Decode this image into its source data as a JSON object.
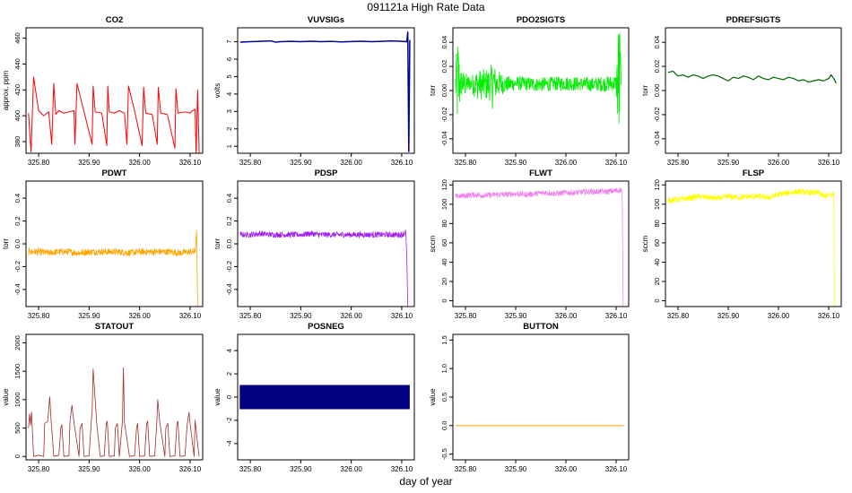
{
  "page": {
    "title": "091121a   High Rate Data",
    "xlabel": "day of year"
  },
  "chart_data": [
    {
      "id": "co2",
      "type": "line",
      "title": "CO2",
      "ylabel": "approx. ppm",
      "color": "#ff0000",
      "xlim": [
        325.775,
        326.125
      ],
      "ylim": [
        371,
        468
      ],
      "xticks": [
        325.8,
        325.9,
        326.0,
        326.1
      ],
      "xtick_labels": [
        "325.80",
        "325.90",
        "326.00",
        "326.10"
      ],
      "yticks": [
        380,
        400,
        420,
        440,
        460
      ],
      "ytick_labels": [
        "380",
        "400",
        "420",
        "440",
        "460"
      ],
      "x": [
        325.78,
        325.785,
        325.79,
        325.8,
        325.81,
        325.82,
        325.826,
        325.83,
        325.834,
        325.84,
        325.85,
        325.86,
        325.87,
        325.872,
        325.876,
        325.89,
        325.906,
        325.908,
        325.912,
        325.925,
        325.935,
        325.937,
        325.94,
        325.95,
        325.96,
        325.97,
        325.975,
        325.978,
        325.99,
        326.005,
        326.008,
        326.012,
        326.025,
        326.035,
        326.037,
        326.042,
        326.055,
        326.07,
        326.072,
        326.076,
        326.09,
        326.1,
        326.105,
        326.11,
        326.112,
        326.115,
        326.118
      ],
      "y": [
        402,
        372,
        430,
        404,
        400,
        403,
        378,
        425,
        401,
        404,
        402,
        403,
        404,
        378,
        425,
        403,
        378,
        423,
        403,
        402,
        377,
        423,
        403,
        402,
        404,
        402,
        378,
        423,
        404,
        377,
        422,
        402,
        401,
        378,
        422,
        402,
        401,
        375,
        421,
        402,
        403,
        402,
        404,
        405,
        370,
        420,
        368
      ],
      "line_width": 1
    },
    {
      "id": "vuvsigs",
      "type": "line",
      "title": "VUVSIGs",
      "ylabel": "volts",
      "color": "#000099",
      "xlim": [
        325.775,
        326.125
      ],
      "ylim": [
        0.6,
        7.8
      ],
      "xticks": [
        325.8,
        325.9,
        326.0,
        326.1
      ],
      "xtick_labels": [
        "325.80",
        "325.90",
        "326.00",
        "326.10"
      ],
      "yticks": [
        1,
        2,
        3,
        4,
        5,
        6,
        7
      ],
      "ytick_labels": [
        "1",
        "2",
        "3",
        "4",
        "5",
        "6",
        "7"
      ],
      "x": [
        325.78,
        325.8,
        325.82,
        325.84,
        325.85,
        325.86,
        325.88,
        325.9,
        325.92,
        325.94,
        325.96,
        325.98,
        326.0,
        326.02,
        326.04,
        326.06,
        326.08,
        326.1,
        326.11,
        326.112,
        326.114,
        326.116
      ],
      "y": [
        6.98,
        7.0,
        7.02,
        7.05,
        6.98,
        7.0,
        7.02,
        7.0,
        7.03,
        7.0,
        7.02,
        6.99,
        7.01,
        7.03,
        7.0,
        7.02,
        7.05,
        7.02,
        7.0,
        7.55,
        0.7,
        7.1
      ],
      "line_width": 1.5
    },
    {
      "id": "pdo2sigts",
      "type": "line",
      "title": "PDO2SIGTS",
      "ylabel": "torr",
      "color": "#00ee00",
      "xlim": [
        325.775,
        326.125
      ],
      "ylim": [
        -0.052,
        0.052
      ],
      "xticks": [
        325.8,
        325.9,
        326.0,
        326.1
      ],
      "xtick_labels": [
        "325.80",
        "325.90",
        "326.00",
        "326.10"
      ],
      "yticks": [
        -0.04,
        -0.02,
        0.0,
        0.02,
        0.04
      ],
      "ytick_labels": [
        "-0.04",
        "-0.02",
        "0.00",
        "0.02",
        "0.04"
      ],
      "x": [
        325.78,
        325.785,
        325.79,
        325.8,
        325.81,
        325.82,
        325.85,
        325.855,
        325.86,
        325.87,
        325.88,
        325.9,
        325.95,
        326.0,
        326.05,
        326.1,
        326.105,
        326.108,
        326.11
      ],
      "y": [
        0.005,
        0.005,
        0.006,
        0.005,
        0.006,
        0.005,
        0.005,
        0.006,
        0.005,
        0.006,
        0.005,
        0.006,
        0.005,
        0.006,
        0.005,
        0.006,
        0.005,
        0.006,
        0.005
      ],
      "noise": [
        0.014,
        0.045,
        0.012,
        0.01,
        0.006,
        0.012,
        0.014,
        0.024,
        0.012,
        0.01,
        0.007,
        0.006,
        0.006,
        0.006,
        0.006,
        0.007,
        0.06,
        0.05,
        0.01
      ],
      "band": true
    },
    {
      "id": "pdrefsigts",
      "type": "line",
      "title": "PDREFSIGTS",
      "ylabel": "torr",
      "color": "#006400",
      "xlim": [
        325.775,
        326.125
      ],
      "ylim": [
        -0.052,
        0.052
      ],
      "xticks": [
        325.8,
        325.9,
        326.0,
        326.1
      ],
      "xtick_labels": [
        "325.80",
        "325.90",
        "326.00",
        "326.10"
      ],
      "yticks": [
        -0.04,
        -0.02,
        0.0,
        0.02,
        0.04
      ],
      "ytick_labels": [
        "-0.04",
        "-0.02",
        "0.00",
        "0.02",
        "0.04"
      ],
      "x": [
        325.78,
        325.79,
        325.8,
        325.81,
        325.82,
        325.83,
        325.84,
        325.85,
        325.86,
        325.87,
        325.88,
        325.89,
        325.9,
        325.91,
        325.92,
        325.93,
        325.94,
        325.95,
        325.96,
        325.97,
        325.98,
        325.99,
        326.0,
        326.01,
        326.02,
        326.03,
        326.04,
        326.05,
        326.06,
        326.07,
        326.08,
        326.09,
        326.1,
        326.105,
        326.11,
        326.115
      ],
      "y": [
        0.015,
        0.016,
        0.012,
        0.013,
        0.011,
        0.013,
        0.012,
        0.01,
        0.012,
        0.013,
        0.012,
        0.01,
        0.008,
        0.011,
        0.01,
        0.012,
        0.011,
        0.009,
        0.012,
        0.01,
        0.009,
        0.011,
        0.01,
        0.009,
        0.011,
        0.01,
        0.008,
        0.009,
        0.007,
        0.008,
        0.009,
        0.008,
        0.01,
        0.013,
        0.01,
        0.006
      ],
      "line_width": 1.2
    },
    {
      "id": "pdwt",
      "type": "line",
      "title": "PDWT",
      "ylabel": "torr",
      "color": "#ffa500",
      "xlim": [
        325.775,
        326.125
      ],
      "ylim": [
        -0.55,
        0.55
      ],
      "xticks": [
        325.8,
        325.9,
        326.0,
        326.1
      ],
      "xtick_labels": [
        "325.80",
        "325.90",
        "326.00",
        "326.10"
      ],
      "yticks": [
        -0.4,
        -0.2,
        0.0,
        0.2,
        0.4
      ],
      "ytick_labels": [
        "-0.4",
        "-0.2",
        "0.0",
        "0.2",
        "0.4"
      ],
      "x": [
        325.78,
        325.8,
        325.82,
        325.84,
        325.86,
        325.88,
        325.9,
        325.92,
        325.94,
        325.96,
        325.98,
        326.0,
        326.02,
        326.04,
        326.06,
        326.08,
        326.1,
        326.11,
        326.113,
        326.115
      ],
      "y": [
        -0.07,
        -0.07,
        -0.08,
        -0.07,
        -0.07,
        -0.08,
        -0.07,
        -0.07,
        -0.07,
        -0.07,
        -0.08,
        -0.07,
        -0.07,
        -0.07,
        -0.07,
        -0.08,
        -0.07,
        -0.07,
        0.12,
        -0.55
      ],
      "noise": [
        0.03,
        0.03,
        0.03,
        0.03,
        0.03,
        0.03,
        0.03,
        0.03,
        0.03,
        0.03,
        0.03,
        0.03,
        0.03,
        0.03,
        0.03,
        0.03,
        0.03,
        0.03,
        0.0,
        0.0
      ],
      "band": true
    },
    {
      "id": "pdsp",
      "type": "line",
      "title": "PDSP",
      "ylabel": "torr",
      "color": "#a020f0",
      "xlim": [
        325.775,
        326.125
      ],
      "ylim": [
        -0.55,
        0.55
      ],
      "xticks": [
        325.8,
        325.9,
        326.0,
        326.1
      ],
      "xtick_labels": [
        "325.80",
        "325.90",
        "326.00",
        "326.10"
      ],
      "yticks": [
        -0.4,
        -0.2,
        0.0,
        0.2,
        0.4
      ],
      "ytick_labels": [
        "-0.4",
        "-0.2",
        "0.0",
        "0.2",
        "0.4"
      ],
      "x": [
        325.78,
        325.8,
        325.82,
        325.84,
        325.86,
        325.88,
        325.9,
        325.92,
        325.94,
        325.96,
        325.98,
        326.0,
        326.02,
        326.04,
        326.06,
        326.08,
        326.1,
        326.108,
        326.11,
        326.112
      ],
      "y": [
        0.08,
        0.08,
        0.09,
        0.08,
        0.08,
        0.08,
        0.08,
        0.09,
        0.08,
        0.08,
        0.08,
        0.08,
        0.08,
        0.08,
        0.08,
        0.08,
        0.08,
        0.1,
        -0.1,
        -0.55
      ],
      "noise": [
        0.025,
        0.025,
        0.025,
        0.025,
        0.025,
        0.025,
        0.025,
        0.025,
        0.025,
        0.025,
        0.025,
        0.025,
        0.025,
        0.025,
        0.025,
        0.025,
        0.025,
        0.03,
        0.0,
        0.0
      ],
      "band": true
    },
    {
      "id": "flwt",
      "type": "line",
      "title": "FLWT",
      "ylabel": "sccm",
      "color": "#ee82ee",
      "xlim": [
        325.775,
        326.125
      ],
      "ylim": [
        -6,
        124
      ],
      "xticks": [
        325.8,
        325.9,
        326.0,
        326.1
      ],
      "xtick_labels": [
        "325.80",
        "325.90",
        "326.00",
        "326.10"
      ],
      "yticks": [
        0,
        20,
        40,
        60,
        80,
        100,
        120
      ],
      "ytick_labels": [
        "0",
        "20",
        "40",
        "60",
        "80",
        "100",
        "120"
      ],
      "x": [
        325.78,
        325.8,
        325.82,
        325.84,
        325.86,
        325.88,
        325.9,
        325.92,
        325.94,
        325.96,
        325.98,
        326.0,
        326.02,
        326.04,
        326.06,
        326.08,
        326.1,
        326.11,
        326.112,
        326.114
      ],
      "y": [
        108,
        109,
        110,
        109,
        110,
        110,
        111,
        110,
        111,
        112,
        111,
        112,
        112,
        113,
        113,
        113,
        114,
        115,
        114,
        -5
      ],
      "noise": [
        3,
        3,
        3,
        3,
        3,
        3,
        3,
        3,
        3,
        3,
        3,
        3,
        3,
        3,
        3,
        3,
        3,
        3,
        0,
        0
      ],
      "band": true
    },
    {
      "id": "flsp",
      "type": "line",
      "title": "FLSP",
      "ylabel": "sccm",
      "color": "#ffff00",
      "xlim": [
        325.775,
        326.125
      ],
      "ylim": [
        -6,
        124
      ],
      "xticks": [
        325.8,
        325.9,
        326.0,
        326.1
      ],
      "xtick_labels": [
        "325.80",
        "325.90",
        "326.00",
        "326.10"
      ],
      "yticks": [
        0,
        20,
        40,
        60,
        80,
        100,
        120
      ],
      "ytick_labels": [
        "0",
        "20",
        "40",
        "60",
        "80",
        "100",
        "120"
      ],
      "x": [
        325.78,
        325.8,
        325.82,
        325.84,
        325.86,
        325.88,
        325.9,
        325.92,
        325.94,
        325.96,
        325.98,
        326.0,
        326.02,
        326.04,
        326.06,
        326.08,
        326.09,
        326.1,
        326.105,
        326.11,
        326.112
      ],
      "y": [
        104,
        105,
        106,
        108,
        107,
        106,
        108,
        107,
        108,
        108,
        107,
        110,
        112,
        113,
        112,
        112,
        108,
        110,
        109,
        111,
        -7
      ],
      "noise": [
        3,
        3,
        3,
        3,
        3,
        3,
        3,
        3,
        3,
        3,
        3,
        3,
        3,
        3,
        3,
        3,
        3,
        3,
        3,
        3,
        0
      ],
      "band": true
    },
    {
      "id": "statout",
      "type": "line",
      "title": "STATOUT",
      "ylabel": "value",
      "color": "#a52a2a",
      "xlim": [
        325.775,
        326.125
      ],
      "ylim": [
        -60,
        2150
      ],
      "xticks": [
        325.8,
        325.9,
        326.0,
        326.1
      ],
      "xtick_labels": [
        "325.80",
        "325.90",
        "326.00",
        "326.10"
      ],
      "yticks": [
        0,
        500,
        1000,
        1500,
        2000
      ],
      "ytick_labels": [
        "0",
        "500",
        "1000",
        "1500",
        "2000"
      ],
      "x": [
        325.78,
        325.782,
        325.784,
        325.786,
        325.79,
        325.8,
        325.81,
        325.812,
        325.818,
        325.822,
        325.825,
        325.83,
        325.84,
        325.844,
        325.846,
        325.85,
        325.86,
        325.862,
        325.866,
        325.87,
        325.88,
        325.882,
        325.886,
        325.89,
        325.9,
        325.904,
        325.906,
        325.908,
        325.915,
        325.922,
        325.93,
        325.934,
        325.936,
        325.94,
        325.95,
        325.952,
        325.956,
        325.96,
        325.966,
        325.968,
        325.97,
        325.98,
        325.99,
        325.994,
        325.996,
        326.0,
        326.01,
        326.014,
        326.016,
        326.02,
        326.03,
        326.034,
        326.036,
        326.04,
        326.05,
        326.052,
        326.056,
        326.06,
        326.07,
        326.074,
        326.076,
        326.08,
        326.09,
        326.094,
        326.098,
        326.1,
        326.108,
        326.11,
        326.114,
        326.118
      ],
      "y": [
        500,
        750,
        550,
        780,
        0,
        20,
        0,
        580,
        620,
        1050,
        600,
        0,
        20,
        500,
        560,
        0,
        10,
        600,
        900,
        600,
        0,
        500,
        580,
        0,
        10,
        580,
        800,
        1540,
        600,
        0,
        10,
        580,
        620,
        0,
        10,
        500,
        580,
        0,
        620,
        1560,
        600,
        0,
        10,
        500,
        580,
        0,
        10,
        580,
        620,
        0,
        10,
        580,
        1000,
        600,
        0,
        500,
        580,
        0,
        10,
        580,
        620,
        0,
        10,
        540,
        780,
        580,
        0,
        640,
        300,
        0
      ],
      "line_width": 0.8
    },
    {
      "id": "posneg",
      "type": "area",
      "title": "POSNEG",
      "ylabel": "value",
      "color": "#000080",
      "xlim": [
        325.775,
        326.125
      ],
      "ylim": [
        -5.4,
        5.4
      ],
      "xticks": [
        325.8,
        325.9,
        326.0,
        326.1
      ],
      "xtick_labels": [
        "325.80",
        "325.90",
        "326.00",
        "326.10"
      ],
      "yticks": [
        -4,
        -2,
        0,
        2,
        4
      ],
      "ytick_labels": [
        "-4",
        "-2",
        "0",
        "2",
        "4"
      ],
      "x": [
        325.78,
        326.115
      ],
      "y_low": [
        -1,
        -1
      ],
      "y_high": [
        1,
        1
      ]
    },
    {
      "id": "button",
      "type": "line",
      "title": "BUTTON",
      "ylabel": "value",
      "color": "#ffa500",
      "xlim": [
        325.775,
        326.125
      ],
      "ylim": [
        -0.6,
        1.6
      ],
      "xticks": [
        325.8,
        325.9,
        326.0,
        326.1
      ],
      "xtick_labels": [
        "325.80",
        "325.90",
        "326.00",
        "326.10"
      ],
      "yticks": [
        -0.5,
        0.0,
        0.5,
        1.0,
        1.5
      ],
      "ytick_labels": [
        "-0.5",
        "0.0",
        "0.5",
        "1.0",
        "1.5"
      ],
      "x": [
        325.78,
        326.115
      ],
      "y": [
        0,
        0
      ],
      "line_width": 1
    }
  ]
}
